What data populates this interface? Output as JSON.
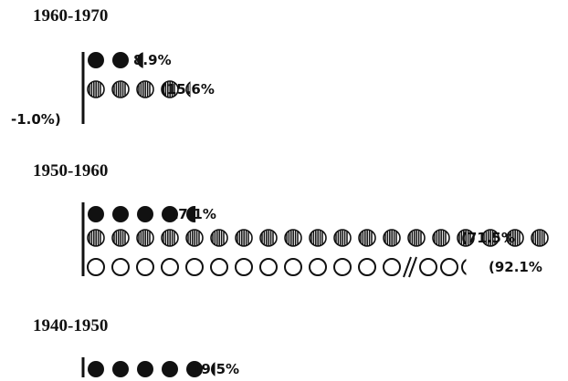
{
  "chart_data": {
    "type": "pictograph",
    "unit_percent": 3.75,
    "series": [
      {
        "key": "solid",
        "fill": "solid"
      },
      {
        "key": "striped",
        "fill": "striped"
      },
      {
        "key": "open",
        "fill": "open"
      }
    ],
    "groups": [
      {
        "period": "1960-1970",
        "rows": [
          {
            "series": "solid",
            "value": 8.9,
            "label": "8.9%"
          },
          {
            "series": "striped",
            "value": 15.6,
            "label": "(15.6%"
          },
          {
            "series": "open",
            "value": -1.0,
            "label": "-1.0%)"
          }
        ]
      },
      {
        "period": "1950-1960",
        "rows": [
          {
            "series": "solid",
            "value": 17.1,
            "label": "(17.1%"
          },
          {
            "series": "striped",
            "value": 71.5,
            "label": "(71.5%"
          },
          {
            "series": "open",
            "value": 92.1,
            "label": "(92.1%",
            "axis_break": true
          }
        ]
      },
      {
        "period": "1940-1950",
        "rows": [
          {
            "series": "solid",
            "value": 19.5,
            "label": "19.5%"
          }
        ]
      }
    ]
  },
  "colors": {
    "ink": "#111111",
    "background": "#ffffff"
  }
}
